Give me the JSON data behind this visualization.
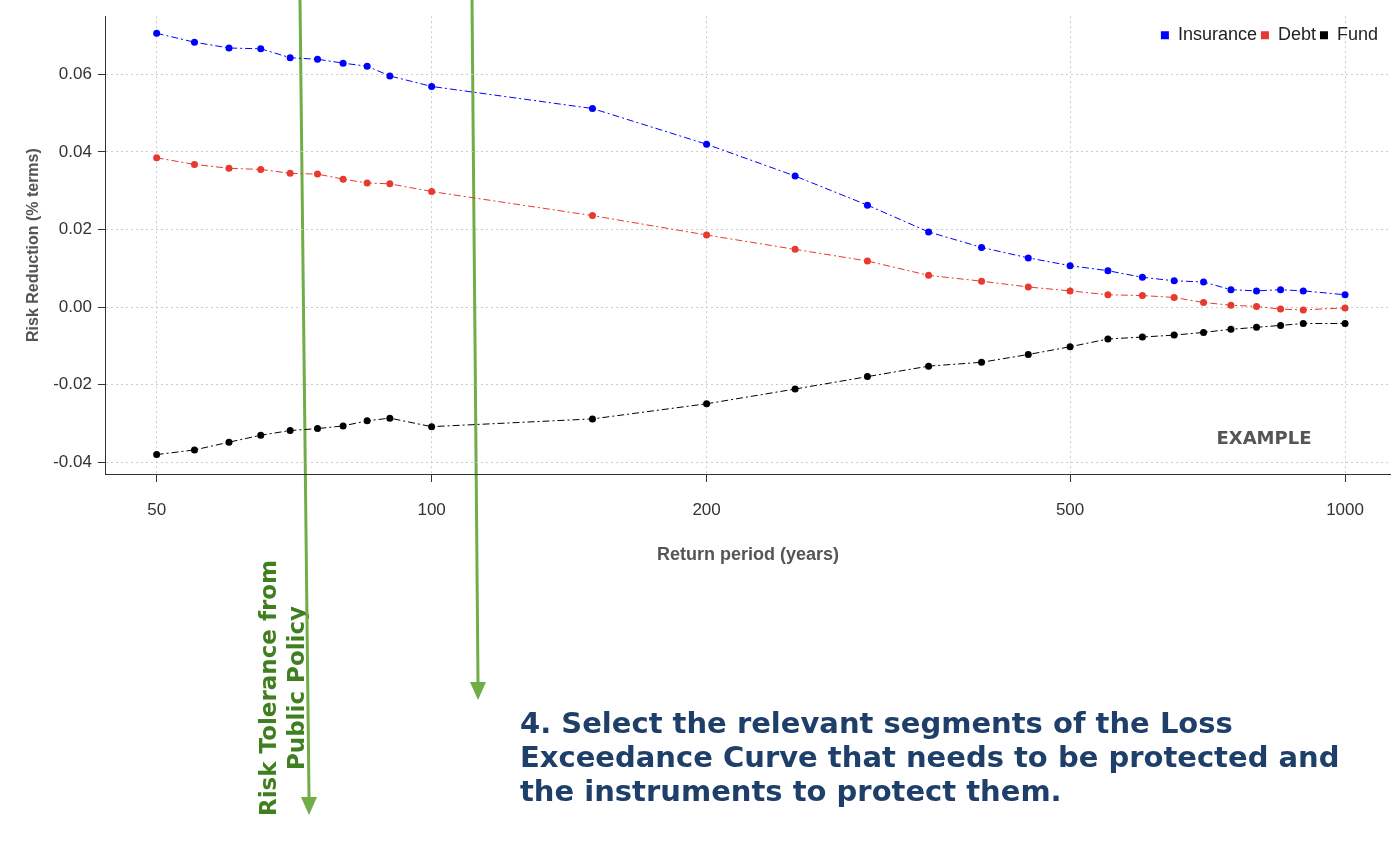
{
  "chart_data": {
    "type": "line",
    "xlabel": "Return period (years)",
    "ylabel": "Risk Reduction (% terms)",
    "x": [
      50,
      55,
      60,
      65,
      70,
      75,
      80,
      85,
      90,
      100,
      150,
      200,
      250,
      300,
      350,
      400,
      450,
      500,
      550,
      600,
      650,
      700,
      750,
      800,
      850,
      900,
      1000
    ],
    "series": [
      {
        "name": "Insurance",
        "color": "#0000ff",
        "values": [
          0.0706,
          0.0683,
          0.0668,
          0.0666,
          0.0643,
          0.0639,
          0.0629,
          0.0621,
          0.0596,
          0.0569,
          0.0512,
          0.042,
          0.0338,
          0.0263,
          0.0194,
          0.0154,
          0.0127,
          0.0107,
          0.0094,
          0.0077,
          0.0068,
          0.0065,
          0.0045,
          0.0042,
          0.0045,
          0.0042,
          0.0032
        ]
      },
      {
        "name": "Debt",
        "color": "#e8392f",
        "values": [
          0.0385,
          0.0368,
          0.0358,
          0.0355,
          0.0345,
          0.0343,
          0.033,
          0.032,
          0.0318,
          0.0298,
          0.0236,
          0.0186,
          0.0149,
          0.0119,
          0.0082,
          0.0067,
          0.0052,
          0.0042,
          0.0032,
          0.003,
          0.0025,
          0.0012,
          0.0005,
          0.0002,
          -0.0005,
          -0.0007,
          -0.0002
        ]
      },
      {
        "name": "Fund",
        "color": "#000000",
        "values": [
          -0.038,
          -0.0368,
          -0.0348,
          -0.033,
          -0.0318,
          -0.0313,
          -0.0306,
          -0.0293,
          -0.0286,
          -0.0308,
          -0.0288,
          -0.0249,
          -0.0211,
          -0.0179,
          -0.0152,
          -0.0142,
          -0.0122,
          -0.0102,
          -0.0082,
          -0.0077,
          -0.0072,
          -0.0065,
          -0.0057,
          -0.0052,
          -0.0047,
          -0.0042,
          -0.0042
        ]
      }
    ],
    "log": "x",
    "xlim": [
      44,
      1120
    ],
    "xticks": [
      50,
      100,
      200,
      500,
      1000
    ],
    "ylim": [
      -0.043,
      0.075
    ],
    "yticks": [
      {
        "value": -0.04,
        "label": "-0.04"
      },
      {
        "value": -0.02,
        "label": "-0.02"
      },
      {
        "value": 0,
        "label": "0.00"
      },
      {
        "value": 0.02,
        "label": "0.02"
      },
      {
        "value": 0.04,
        "label": "0.04"
      },
      {
        "value": 0.06,
        "label": "0.06"
      }
    ],
    "grid": true,
    "legend": "top right",
    "marker": "circle",
    "line_style": "dashed",
    "annotations": [
      "EXAMPLE",
      "Risk Tolerance from Public Policy",
      "4. Select the relevant segments of the Loss Exceedance Curve that needs to be protected and the instruments to protect them."
    ]
  }
}
